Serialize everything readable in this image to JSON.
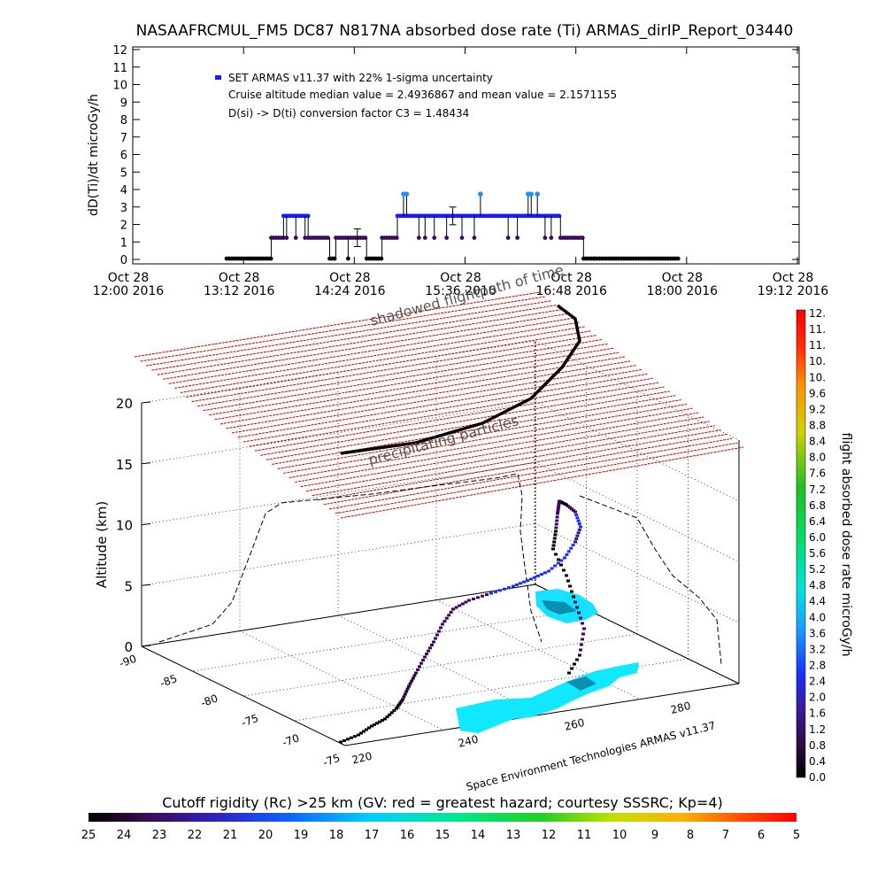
{
  "chart_data": [
    {
      "type": "scatter",
      "title": "NASAAFRCMUL_FM5 DC87 N817NA absorbed dose rate (Ti) ARMAS_dirIP_Report_03440",
      "ylabel": "dD(Ti)/dt microGy/h",
      "xlabel": "",
      "ylim": [
        0,
        12
      ],
      "grid": false,
      "legend_position": "top-left",
      "y_ticks": [
        "0",
        "1",
        "2",
        "3",
        "4",
        "5",
        "6",
        "7",
        "8",
        "9",
        "10",
        "11",
        "12"
      ],
      "x_ticks": [
        {
          "l1": "Oct 28",
          "l2": "12:00 2016",
          "t": 0
        },
        {
          "l1": "Oct 28",
          "l2": "13:12 2016",
          "t": 72
        },
        {
          "l1": "Oct 28",
          "l2": "14:24 2016",
          "t": 144
        },
        {
          "l1": "Oct 28",
          "l2": "15:36 2016",
          "t": 216
        },
        {
          "l1": "Oct 28",
          "l2": "16:48 2016",
          "t": 288
        },
        {
          "l1": "Oct 28",
          "l2": "18:00 2016",
          "t": 360
        },
        {
          "l1": "Oct 28",
          "l2": "19:12 2016",
          "t": 432
        }
      ],
      "legend": [
        "SET ARMAS v11.37 with 22% 1-sigma uncertainty",
        "Cruise altitude median value = 2.4936867 and mean value = 2.1571155",
        "D(si) -> D(ti) conversion factor C3 = 1.48434"
      ],
      "series": [
        {
          "name": "SET ARMAS v11.37 with 22% 1-sigma uncertainty",
          "segments": [
            {
              "t0": 61,
              "t1": 90,
              "v": 0.05
            },
            {
              "t0": 90,
              "t1": 98,
              "v": 1.24
            },
            {
              "t0": 98,
              "t1": 114,
              "v": 2.49
            },
            {
              "t0": 114,
              "t1": 128,
              "v": 1.24
            },
            {
              "t0": 128,
              "t1": 132,
              "v": 0.05
            },
            {
              "t0": 132,
              "t1": 152,
              "v": 1.24
            },
            {
              "t0": 152,
              "t1": 162,
              "v": 0.05
            },
            {
              "t0": 162,
              "t1": 172,
              "v": 1.24
            },
            {
              "t0": 172,
              "t1": 234,
              "v": 2.49
            },
            {
              "t0": 234,
              "t1": 278,
              "v": 2.49
            },
            {
              "t0": 278,
              "t1": 293,
              "v": 1.24
            },
            {
              "t0": 293,
              "t1": 300,
              "v": 0.05
            },
            {
              "t0": 300,
              "t1": 356,
              "v": 0.05
            }
          ],
          "spikes": [
            {
              "t": 176,
              "v": 3.74
            },
            {
              "t": 178,
              "v": 3.74
            },
            {
              "t": 226,
              "v": 3.74
            },
            {
              "t": 257,
              "v": 3.74
            },
            {
              "t": 259,
              "v": 3.74
            },
            {
              "t": 263,
              "v": 3.74
            }
          ]
        }
      ],
      "errorbars": [
        {
          "t": 146,
          "v": 1.24
        },
        {
          "t": 208,
          "v": 2.49
        }
      ]
    },
    {
      "type": "scatter",
      "title": "",
      "zlabel": "Altitude (km)",
      "z_ticks": [
        "0",
        "5",
        "10",
        "15",
        "20"
      ],
      "lat_ticks": [
        "-90",
        "-85",
        "-80",
        "-75",
        "-70",
        "-75"
      ],
      "lon_ticks": [
        "220",
        "240",
        "260",
        "280"
      ],
      "annotations": [
        "shadowed flightpath of time",
        "precipitating particles"
      ],
      "credit": "Space Environment Technologies ARMAS v11.37"
    }
  ],
  "colorbars": [
    {
      "name": "flight absorbed dose rate microGy/h",
      "labels": [
        "12.",
        "11.",
        "11.",
        "10.",
        "10.",
        "9.6",
        "9.2",
        "8.8",
        "8.4",
        "8.0",
        "7.6",
        "7.2",
        "6.8",
        "6.4",
        "6.0",
        "5.6",
        "5.2",
        "4.8",
        "4.4",
        "4.0",
        "3.6",
        "3.2",
        "2.8",
        "2.4",
        "2.0",
        "1.6",
        "1.2",
        "0.8",
        "0.4",
        "0.0"
      ]
    },
    {
      "name": "Cutoff rigidity (Rc) >25 km (GV: red = greatest hazard; courtesy SSSRC; Kp=4)",
      "labels": [
        "25",
        "24",
        "23",
        "22",
        "21",
        "20",
        "19",
        "18",
        "17",
        "16",
        "15",
        "14",
        "13",
        "12",
        "11",
        "10",
        "9",
        "8",
        "7",
        "6",
        "5"
      ]
    }
  ],
  "colors": {
    "dose_low": "#000000",
    "dose_mid": "#3b0a5c",
    "dose_high": "#1a1aff",
    "dose_spike": "#1e90ff",
    "grid_plane": "#cc0000",
    "ice": "#00e5ff"
  }
}
